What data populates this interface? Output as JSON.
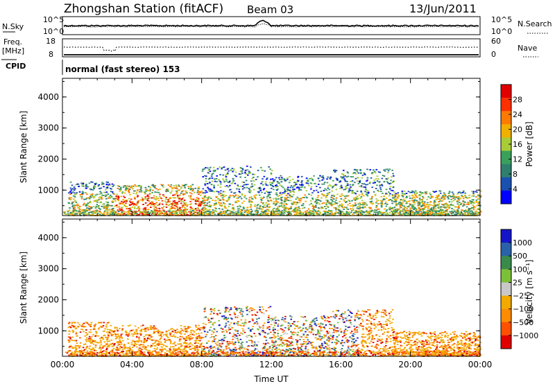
{
  "header": {
    "station": "Zhongshan Station (fitACF)",
    "beam": "Beam 03",
    "date": "13/Jun/2011"
  },
  "summary_panels": {
    "nsky_label": "N.Sky",
    "nsearch_label": "N.Search",
    "count_axis_top": "10^5",
    "count_axis_bottom": "10^0",
    "freq_label": "Freq.",
    "freq_unit": "[MHz]",
    "freq_ticks": [
      "18",
      "8"
    ],
    "nave_label": "Nave",
    "nave_ticks": [
      "60",
      "0"
    ],
    "cpid_label": "CPID",
    "cpid_text": "normal (fast stereo) 153"
  },
  "colors": {
    "power_scale": [
      "#0000ff",
      "#1a50b0",
      "#2f7f6e",
      "#3aa05a",
      "#a8cc38",
      "#f0b000",
      "#ff7a00",
      "#ff3000",
      "#e00000"
    ],
    "velocity_scale": [
      "#e00000",
      "#ff5000",
      "#ff8c00",
      "#f2a900",
      "#c8c8c8",
      "#7cc038",
      "#3a8a4c",
      "#2a62a8",
      "#1515c8"
    ]
  },
  "chart_data": [
    {
      "type": "heatmap",
      "name": "power",
      "ylabel": "Slant Range [km]",
      "colorbar_label": "Power [dB]",
      "colorbar_ticks": [
        "28",
        "24",
        "20",
        "16",
        "12",
        "8",
        "4"
      ],
      "x_ticks": [
        "00:00",
        "04:00",
        "08:00",
        "12:00",
        "16:00",
        "20:00",
        "00:00"
      ],
      "y_ticks": [
        "4000",
        "3000",
        "2000",
        "1000"
      ],
      "xlim_hours": [
        0,
        24
      ],
      "ylim_km": [
        180,
        4600
      ],
      "scatter_regions_hours_km": [
        {
          "x": [
            0.3,
            3.0
          ],
          "y": [
            200,
            1300
          ],
          "level": "mid"
        },
        {
          "x": [
            3.0,
            8.0
          ],
          "y": [
            200,
            1200
          ],
          "level": "high"
        },
        {
          "x": [
            8.0,
            12.0
          ],
          "y": [
            200,
            1800
          ],
          "level": "mid"
        },
        {
          "x": [
            12.0,
            15.5
          ],
          "y": [
            200,
            1500
          ],
          "level": "mid"
        },
        {
          "x": [
            15.5,
            19.0
          ],
          "y": [
            200,
            1700
          ],
          "level": "mid"
        },
        {
          "x": [
            19.0,
            24.0
          ],
          "y": [
            200,
            1000
          ],
          "level": "mid"
        }
      ]
    },
    {
      "type": "heatmap",
      "name": "velocity",
      "ylabel": "Slant Range [km]",
      "colorbar_label": "Velocity [m s⁻¹]",
      "colorbar_ticks": [
        "1000",
        "500",
        "100",
        "25",
        "−25",
        "−100",
        "−500",
        "−1000"
      ],
      "x_ticks": [
        "00:00",
        "04:00",
        "08:00",
        "12:00",
        "16:00",
        "20:00",
        "00:00"
      ],
      "y_ticks": [
        "4000",
        "3000",
        "2000",
        "1000"
      ],
      "xlabel": "Time UT",
      "xlim_hours": [
        0,
        24
      ],
      "ylim_km": [
        180,
        4600
      ]
    }
  ]
}
